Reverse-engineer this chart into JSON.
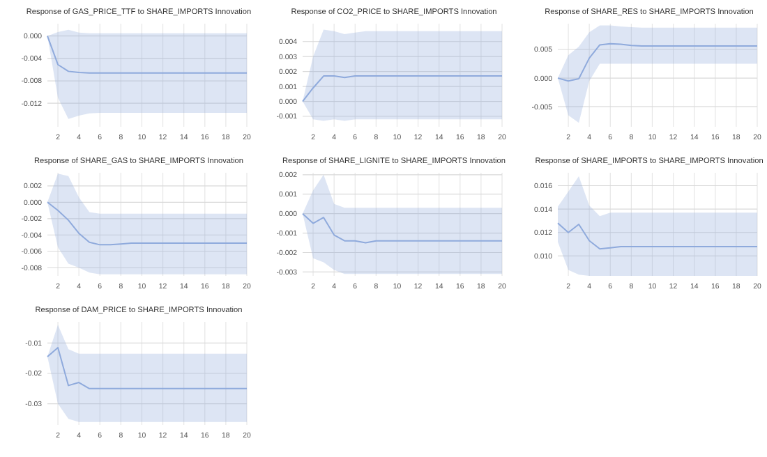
{
  "chart_data": [
    {
      "type": "line",
      "title": "Response of GAS_PRICE_TTF to SHARE_IMPORTS Innovation",
      "x": [
        1,
        2,
        3,
        4,
        5,
        6,
        7,
        8,
        9,
        10,
        11,
        12,
        13,
        14,
        15,
        16,
        17,
        18,
        19,
        20
      ],
      "xlim": [
        1,
        20
      ],
      "xticks": [
        2,
        4,
        6,
        8,
        10,
        12,
        14,
        16,
        18,
        20
      ],
      "ylim": [
        -0.0162,
        0.0022
      ],
      "yticks": [
        {
          "value": 0,
          "label": "0.000"
        },
        {
          "value": -0.004,
          "label": "-0.004"
        },
        {
          "value": -0.008,
          "label": "-0.008"
        },
        {
          "value": -0.012,
          "label": "-0.012"
        }
      ],
      "grid": true,
      "series": [
        {
          "color": "#8faadc",
          "values": [
            0,
            -0.0051,
            -0.0063,
            -0.0065,
            -0.0066,
            -0.0066,
            -0.0066,
            -0.0066,
            -0.0066,
            -0.0066,
            -0.0066,
            -0.0066,
            -0.0066,
            -0.0066,
            -0.0066,
            -0.0066,
            -0.0066,
            -0.0066,
            -0.0066,
            -0.0066
          ],
          "lower": [
            0,
            -0.011,
            -0.0148,
            -0.0142,
            -0.0138,
            -0.0137,
            -0.0137,
            -0.0137,
            -0.0137,
            -0.0137,
            -0.0137,
            -0.0137,
            -0.0137,
            -0.0137,
            -0.0137,
            -0.0137,
            -0.0137,
            -0.0137,
            -0.0137,
            -0.0137
          ],
          "upper": [
            0,
            0.0007,
            0.0011,
            0.0006,
            0.0005,
            0.0005,
            0.0005,
            0.0005,
            0.0005,
            0.0005,
            0.0005,
            0.0005,
            0.0005,
            0.0005,
            0.0005,
            0.0005,
            0.0005,
            0.0005,
            0.0005,
            0.0005
          ]
        }
      ]
    },
    {
      "type": "line",
      "title": "Response of CO2_PRICE to SHARE_IMPORTS Innovation",
      "x": [
        1,
        2,
        3,
        4,
        5,
        6,
        7,
        8,
        9,
        10,
        11,
        12,
        13,
        14,
        15,
        16,
        17,
        18,
        19,
        20
      ],
      "xlim": [
        1,
        20
      ],
      "xticks": [
        2,
        4,
        6,
        8,
        10,
        12,
        14,
        16,
        18,
        20
      ],
      "ylim": [
        -0.0017,
        0.0052
      ],
      "yticks": [
        {
          "value": 0.004,
          "label": "0.004"
        },
        {
          "value": 0.003,
          "label": "0.003"
        },
        {
          "value": 0.002,
          "label": "0.002"
        },
        {
          "value": 0.001,
          "label": "0.001"
        },
        {
          "value": 0,
          "label": "0.000"
        },
        {
          "value": -0.001,
          "label": "-0.001"
        }
      ],
      "grid": true,
      "series": [
        {
          "color": "#8faadc",
          "values": [
            0,
            0.0009,
            0.0017,
            0.0017,
            0.0016,
            0.0017,
            0.0017,
            0.0017,
            0.0017,
            0.0017,
            0.0017,
            0.0017,
            0.0017,
            0.0017,
            0.0017,
            0.0017,
            0.0017,
            0.0017,
            0.0017,
            0.0017
          ],
          "lower": [
            0,
            -0.0012,
            -0.0013,
            -0.0012,
            -0.0013,
            -0.0012,
            -0.0012,
            -0.0012,
            -0.0012,
            -0.0012,
            -0.0012,
            -0.0012,
            -0.0012,
            -0.0012,
            -0.0012,
            -0.0012,
            -0.0012,
            -0.0012,
            -0.0012,
            -0.0012
          ],
          "upper": [
            0,
            0.003,
            0.0048,
            0.0047,
            0.0045,
            0.0046,
            0.0047,
            0.0047,
            0.0047,
            0.0047,
            0.0047,
            0.0047,
            0.0047,
            0.0047,
            0.0047,
            0.0047,
            0.0047,
            0.0047,
            0.0047,
            0.0047
          ]
        }
      ]
    },
    {
      "type": "line",
      "title": "Response of SHARE_RES to SHARE_IMPORTS Innovation",
      "x": [
        1,
        2,
        3,
        4,
        5,
        6,
        7,
        8,
        9,
        10,
        11,
        12,
        13,
        14,
        15,
        16,
        17,
        18,
        19,
        20
      ],
      "xlim": [
        1,
        20
      ],
      "xticks": [
        2,
        4,
        6,
        8,
        10,
        12,
        14,
        16,
        18,
        20
      ],
      "ylim": [
        -0.0085,
        0.0095
      ],
      "yticks": [
        {
          "value": 0.005,
          "label": "0.005"
        },
        {
          "value": 0,
          "label": "0.000"
        },
        {
          "value": -0.005,
          "label": "-0.005"
        }
      ],
      "grid": true,
      "series": [
        {
          "color": "#8faadc",
          "values": [
            0,
            -0.0005,
            -0.0001,
            0.0035,
            0.0058,
            0.006,
            0.0059,
            0.0057,
            0.0056,
            0.0056,
            0.0056,
            0.0056,
            0.0056,
            0.0056,
            0.0056,
            0.0056,
            0.0056,
            0.0056,
            0.0056,
            0.0056
          ],
          "lower": [
            0,
            -0.0065,
            -0.0078,
            -0.0005,
            0.0025,
            0.0025,
            0.0025,
            0.0025,
            0.0025,
            0.0025,
            0.0025,
            0.0025,
            0.0025,
            0.0025,
            0.0025,
            0.0025,
            0.0025,
            0.0025,
            0.0025,
            0.0025
          ],
          "upper": [
            0,
            0.004,
            0.0055,
            0.008,
            0.0092,
            0.0092,
            0.009,
            0.0089,
            0.0088,
            0.0088,
            0.0088,
            0.0088,
            0.0088,
            0.0088,
            0.0088,
            0.0088,
            0.0088,
            0.0088,
            0.0088,
            0.0088
          ]
        }
      ]
    },
    {
      "type": "line",
      "title": "Response of SHARE_GAS to SHARE_IMPORTS Innovation",
      "x": [
        1,
        2,
        3,
        4,
        5,
        6,
        7,
        8,
        9,
        10,
        11,
        12,
        13,
        14,
        15,
        16,
        17,
        18,
        19,
        20
      ],
      "xlim": [
        1,
        20
      ],
      "xticks": [
        2,
        4,
        6,
        8,
        10,
        12,
        14,
        16,
        18,
        20
      ],
      "ylim": [
        -0.009,
        0.0036
      ],
      "yticks": [
        {
          "value": 0.002,
          "label": "0.002"
        },
        {
          "value": 0,
          "label": "0.000"
        },
        {
          "value": -0.002,
          "label": "-0.002"
        },
        {
          "value": -0.004,
          "label": "-0.004"
        },
        {
          "value": -0.006,
          "label": "-0.006"
        },
        {
          "value": -0.008,
          "label": "-0.008"
        }
      ],
      "grid": true,
      "series": [
        {
          "color": "#8faadc",
          "values": [
            0,
            -0.001,
            -0.0022,
            -0.0038,
            -0.0049,
            -0.0052,
            -0.0052,
            -0.0051,
            -0.005,
            -0.005,
            -0.005,
            -0.005,
            -0.005,
            -0.005,
            -0.005,
            -0.005,
            -0.005,
            -0.005,
            -0.005,
            -0.005
          ],
          "lower": [
            0,
            -0.0055,
            -0.0075,
            -0.008,
            -0.0086,
            -0.0088,
            -0.0088,
            -0.0088,
            -0.0088,
            -0.0088,
            -0.0088,
            -0.0088,
            -0.0088,
            -0.0088,
            -0.0088,
            -0.0088,
            -0.0088,
            -0.0088,
            -0.0088,
            -0.0088
          ],
          "upper": [
            0,
            0.0035,
            0.0032,
            0.0006,
            -0.0012,
            -0.0014,
            -0.0014,
            -0.0014,
            -0.0014,
            -0.0014,
            -0.0014,
            -0.0014,
            -0.0014,
            -0.0014,
            -0.0014,
            -0.0014,
            -0.0014,
            -0.0014,
            -0.0014,
            -0.0014
          ]
        }
      ]
    },
    {
      "type": "line",
      "title": "Response of SHARE_LIGNITE to SHARE_IMPORTS Innovation",
      "x": [
        1,
        2,
        3,
        4,
        5,
        6,
        7,
        8,
        9,
        10,
        11,
        12,
        13,
        14,
        15,
        16,
        17,
        18,
        19,
        20
      ],
      "xlim": [
        1,
        20
      ],
      "xticks": [
        2,
        4,
        6,
        8,
        10,
        12,
        14,
        16,
        18,
        20
      ],
      "ylim": [
        -0.0032,
        0.0021
      ],
      "yticks": [
        {
          "value": 0.002,
          "label": "0.002"
        },
        {
          "value": 0.001,
          "label": "0.001"
        },
        {
          "value": 0,
          "label": "0.000"
        },
        {
          "value": -0.001,
          "label": "-0.001"
        },
        {
          "value": -0.002,
          "label": "-0.002"
        },
        {
          "value": -0.003,
          "label": "-0.003"
        }
      ],
      "grid": true,
      "series": [
        {
          "color": "#8faadc",
          "values": [
            0,
            -0.0005,
            -0.0002,
            -0.0011,
            -0.0014,
            -0.0014,
            -0.0015,
            -0.0014,
            -0.0014,
            -0.0014,
            -0.0014,
            -0.0014,
            -0.0014,
            -0.0014,
            -0.0014,
            -0.0014,
            -0.0014,
            -0.0014,
            -0.0014,
            -0.0014
          ],
          "lower": [
            0,
            -0.0023,
            -0.0025,
            -0.0029,
            -0.0031,
            -0.0031,
            -0.0031,
            -0.0031,
            -0.0031,
            -0.0031,
            -0.0031,
            -0.0031,
            -0.0031,
            -0.0031,
            -0.0031,
            -0.0031,
            -0.0031,
            -0.0031,
            -0.0031,
            -0.0031
          ],
          "upper": [
            0,
            0.0012,
            0.002,
            0.0005,
            0.0003,
            0.0003,
            0.0003,
            0.0003,
            0.0003,
            0.0003,
            0.0003,
            0.0003,
            0.0003,
            0.0003,
            0.0003,
            0.0003,
            0.0003,
            0.0003,
            0.0003,
            0.0003
          ]
        }
      ]
    },
    {
      "type": "line",
      "title": "Response of SHARE_IMPORTS to SHARE_IMPORTS Innovation",
      "x": [
        1,
        2,
        3,
        4,
        5,
        6,
        7,
        8,
        9,
        10,
        11,
        12,
        13,
        14,
        15,
        16,
        17,
        18,
        19,
        20
      ],
      "xlim": [
        1,
        20
      ],
      "xticks": [
        2,
        4,
        6,
        8,
        10,
        12,
        14,
        16,
        18,
        20
      ],
      "ylim": [
        0.0083,
        0.0171
      ],
      "yticks": [
        {
          "value": 0.016,
          "label": "0.016"
        },
        {
          "value": 0.014,
          "label": "0.014"
        },
        {
          "value": 0.012,
          "label": "0.012"
        },
        {
          "value": 0.01,
          "label": "0.010"
        }
      ],
      "grid": true,
      "series": [
        {
          "color": "#8faadc",
          "values": [
            0.0128,
            0.012,
            0.0127,
            0.0113,
            0.0106,
            0.0107,
            0.0108,
            0.0108,
            0.0108,
            0.0108,
            0.0108,
            0.0108,
            0.0108,
            0.0108,
            0.0108,
            0.0108,
            0.0108,
            0.0108,
            0.0108,
            0.0108
          ],
          "lower": [
            0.0112,
            0.0088,
            0.0084,
            0.0083,
            0.0083,
            0.0083,
            0.0083,
            0.0083,
            0.0083,
            0.0083,
            0.0083,
            0.0083,
            0.0083,
            0.0083,
            0.0083,
            0.0083,
            0.0083,
            0.0083,
            0.0083,
            0.0083
          ],
          "upper": [
            0.0142,
            0.0155,
            0.0168,
            0.0143,
            0.0134,
            0.0137,
            0.0137,
            0.0137,
            0.0137,
            0.0137,
            0.0137,
            0.0137,
            0.0137,
            0.0137,
            0.0137,
            0.0137,
            0.0137,
            0.0137,
            0.0137,
            0.0137
          ]
        }
      ]
    },
    {
      "type": "line",
      "title": "Response of DAM_PRICE to SHARE_IMPORTS Innovation",
      "x": [
        1,
        2,
        3,
        4,
        5,
        6,
        7,
        8,
        9,
        10,
        11,
        12,
        13,
        14,
        15,
        16,
        17,
        18,
        19,
        20
      ],
      "xlim": [
        1,
        20
      ],
      "xticks": [
        2,
        4,
        6,
        8,
        10,
        12,
        14,
        16,
        18,
        20
      ],
      "ylim": [
        -0.037,
        -0.003
      ],
      "yticks": [
        -0.01,
        -0.02,
        -0.03
      ],
      "grid": true,
      "series": [
        {
          "color": "#8faadc",
          "values": [
            -0.0145,
            -0.0115,
            -0.024,
            -0.023,
            -0.025,
            -0.025,
            -0.025,
            -0.025,
            -0.025,
            -0.025,
            -0.025,
            -0.025,
            -0.025,
            -0.025,
            -0.025,
            -0.025,
            -0.025,
            -0.025,
            -0.025,
            -0.025
          ],
          "lower": [
            -0.0145,
            -0.03,
            -0.035,
            -0.036,
            -0.036,
            -0.036,
            -0.036,
            -0.036,
            -0.036,
            -0.036,
            -0.036,
            -0.036,
            -0.036,
            -0.036,
            -0.036,
            -0.036,
            -0.036,
            -0.036,
            -0.036,
            -0.036
          ],
          "upper": [
            -0.0145,
            -0.004,
            -0.012,
            -0.0135,
            -0.0135,
            -0.0135,
            -0.0135,
            -0.0135,
            -0.0135,
            -0.0135,
            -0.0135,
            -0.0135,
            -0.0135,
            -0.0135,
            -0.0135,
            -0.0135,
            -0.0135,
            -0.0135,
            -0.0135,
            -0.0135
          ]
        }
      ]
    }
  ]
}
